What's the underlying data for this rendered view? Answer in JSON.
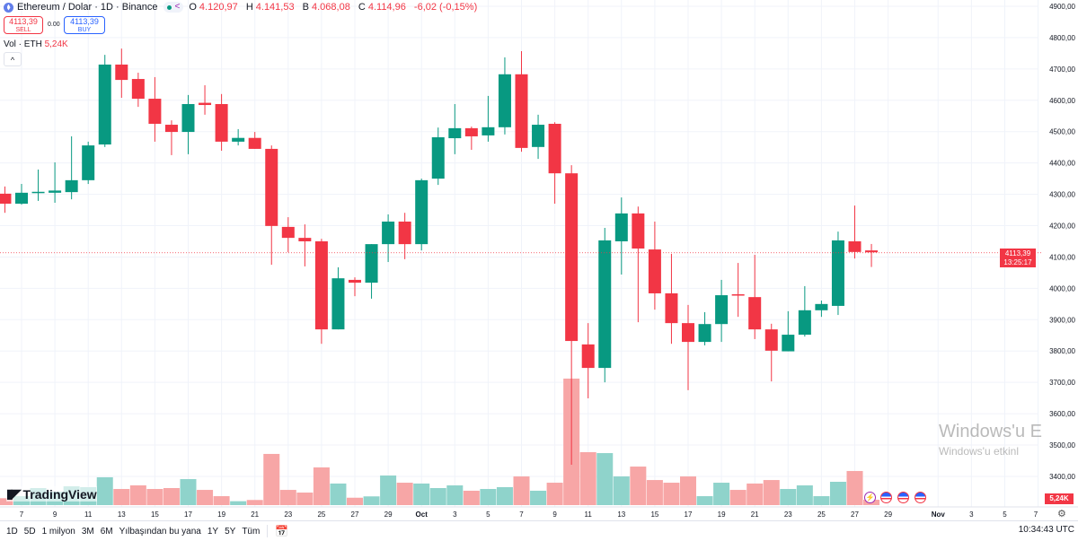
{
  "header": {
    "symbol": "Ethereum / Dolar · 1D · Binance",
    "o_label": "O",
    "o": "4.120,97",
    "h_label": "H",
    "h": "4.141,53",
    "l_label": "B",
    "l": "4.068,08",
    "c_label": "C",
    "c": "4.114,96",
    "change": "-6,02 (-0,15%)"
  },
  "trade": {
    "sell_price": "4113,39",
    "sell_label": "SELL",
    "spread": "0.00",
    "buy_price": "4113,39",
    "buy_label": "BUY"
  },
  "volume_legend": {
    "label": "Vol · ETH",
    "value": "5,24K"
  },
  "collapse_label": "^",
  "logo": {
    "mark": "17",
    "text": "TradingView"
  },
  "current_price": {
    "price": "4113,39",
    "countdown": "13:25:17"
  },
  "volume_tag": "5,24K",
  "time_ranges": [
    "1D",
    "5D",
    "1 milyon",
    "3M",
    "6M",
    "Yılbaşından bu yana",
    "1Y",
    "5Y",
    "Tüm"
  ],
  "clock": "10:34:43 UTC",
  "watermark": {
    "line1": "Windows'u E",
    "line2": "Windows'u etkinl"
  },
  "colors": {
    "up": "#089981",
    "down": "#f23645",
    "vol_up": "#8fd3cb",
    "vol_down": "#f7a6a6",
    "grid": "#f0f3fa"
  },
  "chart_data": {
    "type": "candlestick",
    "y_ticks": [
      "4900,00",
      "4800,00",
      "4700,00",
      "4600,00",
      "4500,00",
      "4400,00",
      "4300,00",
      "4200,00",
      "4100,00",
      "4000,00",
      "3900,00",
      "3800,00",
      "3700,00",
      "3600,00",
      "3500,00",
      "3400,00"
    ],
    "ylim": [
      3400,
      4900
    ],
    "x_ticks": [
      "7",
      "9",
      "11",
      "13",
      "15",
      "17",
      "19",
      "21",
      "23",
      "25",
      "27",
      "29",
      "Oct",
      "3",
      "5",
      "7",
      "9",
      "11",
      "13",
      "15",
      "17",
      "19",
      "21",
      "23",
      "25",
      "27",
      "29",
      "Nov",
      "3",
      "5",
      "7"
    ],
    "grid": true,
    "candles": [
      {
        "date": "Sep 6",
        "o": 4302,
        "h": 4325,
        "l": 4241,
        "c": 4270,
        "v": 6.7
      },
      {
        "date": "Sep 7",
        "o": 4270,
        "h": 4333,
        "l": 4267,
        "c": 4305,
        "v": 8.7
      },
      {
        "date": "Sep 8",
        "o": 4305,
        "h": 4379,
        "l": 4279,
        "c": 4308,
        "v": 16.6
      },
      {
        "date": "Sep 9",
        "o": 4305,
        "h": 4402,
        "l": 4273,
        "c": 4312,
        "v": 13.1
      },
      {
        "date": "Sep 10",
        "o": 4307,
        "h": 4485,
        "l": 4284,
        "c": 4345,
        "v": 18.3
      },
      {
        "date": "Sep 11",
        "o": 4345,
        "h": 4468,
        "l": 4333,
        "c": 4456,
        "v": 17.5
      },
      {
        "date": "Sep 12",
        "o": 4459,
        "h": 4745,
        "l": 4451,
        "c": 4714,
        "v": 27.1
      },
      {
        "date": "Sep 13",
        "o": 4714,
        "h": 4765,
        "l": 4608,
        "c": 4665,
        "v": 15.7
      },
      {
        "date": "Sep 14",
        "o": 4668,
        "h": 4688,
        "l": 4579,
        "c": 4605,
        "v": 19.2
      },
      {
        "date": "Sep 15",
        "o": 4605,
        "h": 4674,
        "l": 4468,
        "c": 4525,
        "v": 15.7
      },
      {
        "date": "Sep 16",
        "o": 4522,
        "h": 4536,
        "l": 4425,
        "c": 4499,
        "v": 16.6
      },
      {
        "date": "Sep 17",
        "o": 4499,
        "h": 4617,
        "l": 4428,
        "c": 4588,
        "v": 25.3
      },
      {
        "date": "Sep 18",
        "o": 4592,
        "h": 4648,
        "l": 4554,
        "c": 4585,
        "v": 14.8
      },
      {
        "date": "Sep 19",
        "o": 4588,
        "h": 4620,
        "l": 4439,
        "c": 4468,
        "v": 8.7
      },
      {
        "date": "Sep 20",
        "o": 4468,
        "h": 4508,
        "l": 4456,
        "c": 4480,
        "v": 3.8
      },
      {
        "date": "Sep 21",
        "o": 4480,
        "h": 4499,
        "l": 4445,
        "c": 4445,
        "v": 5.0
      },
      {
        "date": "Sep 22",
        "o": 4445,
        "h": 4456,
        "l": 4075,
        "c": 4199,
        "v": 49.8
      },
      {
        "date": "Sep 23",
        "o": 4196,
        "h": 4227,
        "l": 4115,
        "c": 4161,
        "v": 14.8
      },
      {
        "date": "Sep 24",
        "o": 4161,
        "h": 4204,
        "l": 4070,
        "c": 4150,
        "v": 12.2
      },
      {
        "date": "Sep 25",
        "o": 4150,
        "h": 4158,
        "l": 3823,
        "c": 3869,
        "v": 36.7
      },
      {
        "date": "Sep 26",
        "o": 3869,
        "h": 4067,
        "l": 3869,
        "c": 4032,
        "v": 21.0
      },
      {
        "date": "Sep 27",
        "o": 4027,
        "h": 4035,
        "l": 3975,
        "c": 4018,
        "v": 7.2
      },
      {
        "date": "Sep 28",
        "o": 4018,
        "h": 4141,
        "l": 3967,
        "c": 4141,
        "v": 8.5
      },
      {
        "date": "Sep 29",
        "o": 4141,
        "h": 4236,
        "l": 4084,
        "c": 4213,
        "v": 28.8
      },
      {
        "date": "Sep 30",
        "o": 4213,
        "h": 4241,
        "l": 4093,
        "c": 4141,
        "v": 21.8
      },
      {
        "date": "Oct 1",
        "o": 4141,
        "h": 4350,
        "l": 4121,
        "c": 4345,
        "v": 21.0
      },
      {
        "date": "Oct 2",
        "o": 4350,
        "h": 4513,
        "l": 4330,
        "c": 4482,
        "v": 16.6
      },
      {
        "date": "Oct 3",
        "o": 4479,
        "h": 4588,
        "l": 4428,
        "c": 4511,
        "v": 19.2
      },
      {
        "date": "Oct 4",
        "o": 4511,
        "h": 4516,
        "l": 4442,
        "c": 4485,
        "v": 14.0
      },
      {
        "date": "Oct 5",
        "o": 4488,
        "h": 4614,
        "l": 4468,
        "c": 4514,
        "v": 15.7
      },
      {
        "date": "Oct 6",
        "o": 4514,
        "h": 4737,
        "l": 4491,
        "c": 4683,
        "v": 17.5
      },
      {
        "date": "Oct 7",
        "o": 4683,
        "h": 4757,
        "l": 4436,
        "c": 4448,
        "v": 27.9
      },
      {
        "date": "Oct 8",
        "o": 4451,
        "h": 4554,
        "l": 4413,
        "c": 4522,
        "v": 14.0
      },
      {
        "date": "Oct 9",
        "o": 4525,
        "h": 4530,
        "l": 4270,
        "c": 4367,
        "v": 21.8
      },
      {
        "date": "Oct 10",
        "o": 4367,
        "h": 4393,
        "l": 3437,
        "c": 3832,
        "v": 123.1
      },
      {
        "date": "Oct 11",
        "o": 3821,
        "h": 3889,
        "l": 3649,
        "c": 3746,
        "v": 51.5
      },
      {
        "date": "Oct 12",
        "o": 3746,
        "h": 4193,
        "l": 3700,
        "c": 4153,
        "v": 50.6
      },
      {
        "date": "Oct 13",
        "o": 4150,
        "h": 4290,
        "l": 4044,
        "c": 4239,
        "v": 27.9
      },
      {
        "date": "Oct 14",
        "o": 4239,
        "h": 4261,
        "l": 3892,
        "c": 4127,
        "v": 37.5
      },
      {
        "date": "Oct 15",
        "o": 4124,
        "h": 4213,
        "l": 3932,
        "c": 3984,
        "v": 24.4
      },
      {
        "date": "Oct 16",
        "o": 3984,
        "h": 4110,
        "l": 3823,
        "c": 3889,
        "v": 21.8
      },
      {
        "date": "Oct 17",
        "o": 3889,
        "h": 3947,
        "l": 3675,
        "c": 3829,
        "v": 27.9
      },
      {
        "date": "Oct 18",
        "o": 3829,
        "h": 3924,
        "l": 3818,
        "c": 3886,
        "v": 8.7
      },
      {
        "date": "Oct 19",
        "o": 3886,
        "h": 4027,
        "l": 3829,
        "c": 3978,
        "v": 21.8
      },
      {
        "date": "Oct 20",
        "o": 3981,
        "h": 4081,
        "l": 3909,
        "c": 3978,
        "v": 14.8
      },
      {
        "date": "Oct 21",
        "o": 3972,
        "h": 4107,
        "l": 3838,
        "c": 3869,
        "v": 21.0
      },
      {
        "date": "Oct 22",
        "o": 3869,
        "h": 3887,
        "l": 3703,
        "c": 3801,
        "v": 24.4
      },
      {
        "date": "Oct 23",
        "o": 3799,
        "h": 3927,
        "l": 3799,
        "c": 3852,
        "v": 15.7
      },
      {
        "date": "Oct 24",
        "o": 3852,
        "h": 4007,
        "l": 3846,
        "c": 3930,
        "v": 19.2
      },
      {
        "date": "Oct 25",
        "o": 3930,
        "h": 3961,
        "l": 3909,
        "c": 3950,
        "v": 8.7
      },
      {
        "date": "Oct 26",
        "o": 3944,
        "h": 4181,
        "l": 3915,
        "c": 4153,
        "v": 22.7
      },
      {
        "date": "Oct 27",
        "o": 4150,
        "h": 4264,
        "l": 4095,
        "c": 4116,
        "v": 33.2
      },
      {
        "date": "Oct 28",
        "o": 4120.97,
        "h": 4141.53,
        "l": 4068.08,
        "c": 4114.96,
        "v": 5.24
      }
    ]
  }
}
